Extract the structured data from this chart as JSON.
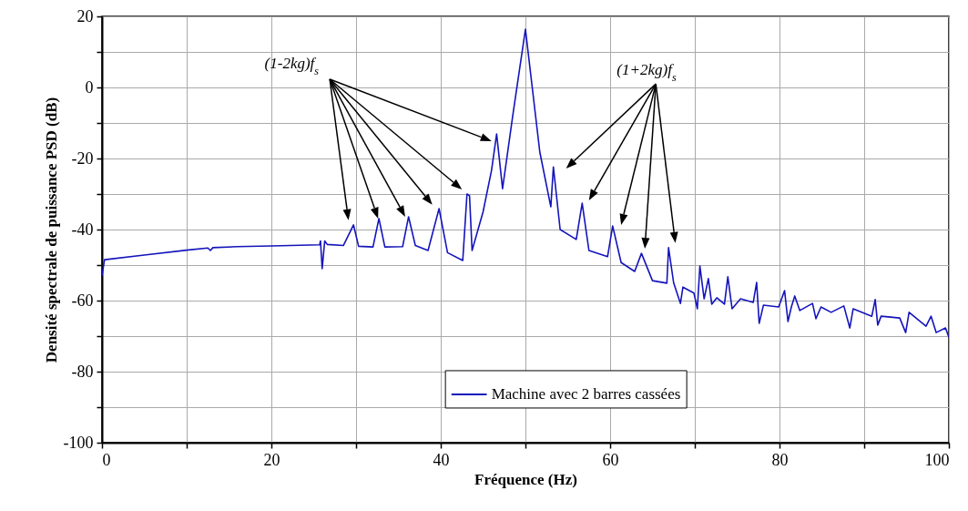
{
  "chart_data": {
    "type": "line",
    "xlabel": "Fréquence (Hz)",
    "ylabel": "Densité spectrale de puissance PSD (dB)",
    "x": [
      0,
      0.3,
      5,
      10,
      12.5,
      12.8,
      13.1,
      16,
      20,
      25.7,
      25.8,
      26.0,
      26.3,
      26.6,
      28.5,
      29.7,
      30.3,
      32.0,
      32.7,
      33.4,
      35.5,
      36.2,
      37,
      38.5,
      39.8,
      40.8,
      42.6,
      43.1,
      43.4,
      43.7,
      45,
      46.0,
      46.6,
      47.3,
      48.5,
      50.0,
      51.7,
      53.0,
      53.3,
      54.1,
      56.0,
      56.7,
      57.5,
      59.7,
      60.3,
      61.3,
      62.9,
      63.7,
      65.0,
      66.7,
      66.9,
      67.5,
      68.3,
      68.6,
      69.9,
      70.3,
      70.6,
      71.1,
      71.6,
      72.0,
      72.6,
      73.5,
      73.9,
      74.4,
      75.4,
      76.9,
      77.3,
      77.6,
      78.1,
      79.9,
      80.6,
      81.0,
      81.4,
      81.8,
      82.4,
      83.9,
      84.3,
      84.9,
      86.1,
      87.6,
      88.3,
      88.7,
      90.9,
      91.3,
      91.6,
      92.0,
      94.2,
      94.9,
      95.3,
      97.3,
      97.9,
      98.5,
      99.6,
      100
    ],
    "series": [
      {
        "name": "Machine avec 2 barres cassées",
        "color": "#1414bc",
        "values": [
          -53,
          -48.5,
          -47.2,
          -45.8,
          -45.2,
          -45.9,
          -45.1,
          -44.8,
          -44.6,
          -44.3,
          -43.2,
          -51,
          -43.2,
          -44.2,
          -44.5,
          -38.7,
          -44.7,
          -44.9,
          -36.9,
          -44.9,
          -44.8,
          -36.4,
          -44.5,
          -45.9,
          -34.1,
          -46.5,
          -48.7,
          -30,
          -30.5,
          -45.9,
          -35,
          -23.3,
          -13.1,
          -28.5,
          -8,
          16.4,
          -18.2,
          -33.6,
          -22.4,
          -40,
          -42.8,
          -32.6,
          -45.9,
          -47.6,
          -39,
          -49.3,
          -51.8,
          -46.7,
          -54.4,
          -55.1,
          -45.1,
          -55,
          -60.8,
          -56.2,
          -57.9,
          -62.3,
          -50.3,
          -59.5,
          -53.8,
          -61,
          -59.2,
          -61,
          -53.3,
          -62.3,
          -59.5,
          -60.5,
          -54.9,
          -66.4,
          -61.3,
          -61.8,
          -57.2,
          -65.9,
          -61.8,
          -58.7,
          -62.8,
          -60.8,
          -65.1,
          -61.8,
          -63.3,
          -61.5,
          -67.7,
          -62.3,
          -64.4,
          -59.7,
          -66.9,
          -64.4,
          -64.9,
          -69,
          -63.3,
          -67.2,
          -64.4,
          -69,
          -67.7,
          -70.3
        ]
      }
    ],
    "xlim": [
      0,
      100
    ],
    "xticks": [
      0,
      {
        "value": 10,
        "label": null
      },
      20,
      {
        "value": 30,
        "label": null
      },
      40,
      {
        "value": 50,
        "label": null
      },
      60,
      {
        "value": 70,
        "label": null
      },
      80,
      {
        "value": 90,
        "label": null
      },
      100
    ],
    "ylim": [
      -100,
      20
    ],
    "yticks": [
      -100,
      {
        "value": -90,
        "label": null
      },
      -80,
      {
        "value": -70,
        "label": null
      },
      -60,
      {
        "value": -50,
        "label": null
      },
      -40,
      {
        "value": -30,
        "label": null
      },
      -20,
      {
        "value": -10,
        "label": null
      },
      0,
      {
        "value": 10,
        "label": null
      },
      20
    ],
    "grid": true,
    "legend": "bottom",
    "line_style": "solid",
    "annotations": [
      "(1-2kg)f$_{s}$",
      "(1+2kg)f$_{s}$"
    ]
  }
}
